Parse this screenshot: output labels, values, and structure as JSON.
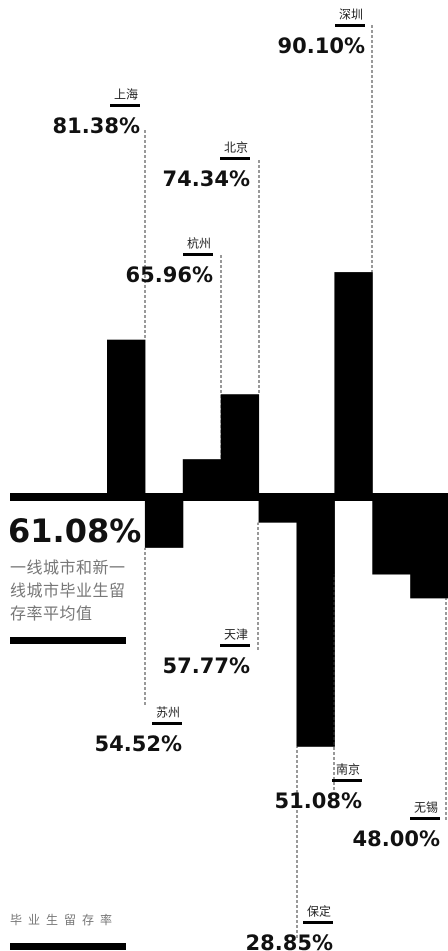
{
  "chart_data": {
    "type": "bar",
    "categories": [
      "上海",
      "苏州",
      "杭州",
      "北京",
      "天津",
      "保定",
      "深圳",
      "南京",
      "无锡"
    ],
    "values": [
      81.38,
      54.52,
      65.96,
      74.34,
      57.77,
      28.85,
      90.1,
      51.08,
      48.0
    ],
    "value_labels": [
      "81.38%",
      "54.52%",
      "65.96%",
      "74.34%",
      "57.77%",
      "28.85%",
      "90.10%",
      "51.08%",
      "48.00%"
    ],
    "color": "#000000",
    "baseline": 61.08,
    "baseline_label": "61.08%",
    "baseline_note": "一线城市和新一线城市毕业生留存率平均值",
    "legend_label": "毕业生留存率"
  }
}
